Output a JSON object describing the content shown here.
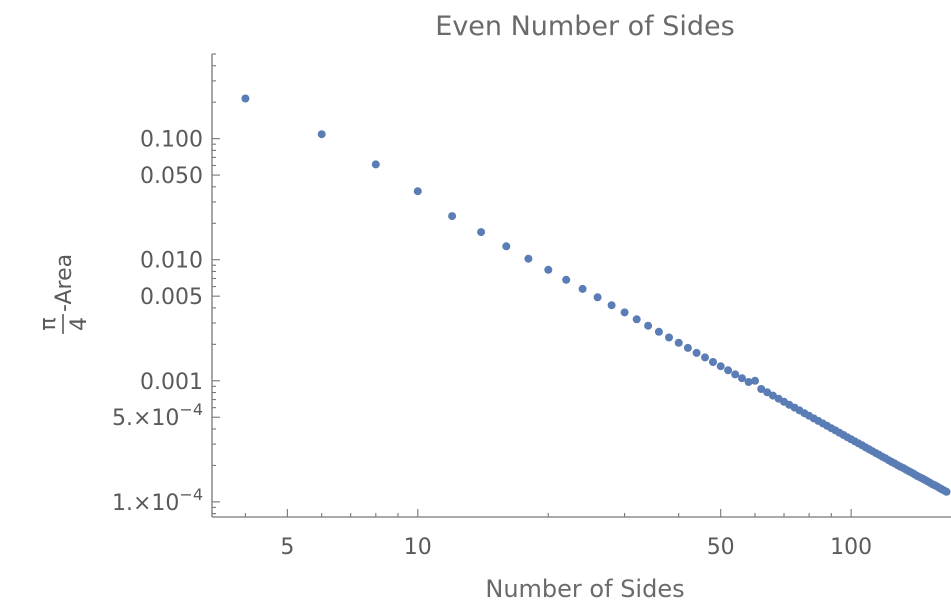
{
  "chart_data": {
    "type": "scatter",
    "title": "Even Number of Sides",
    "xlabel": "Number of Sides",
    "ylabel": {
      "numerator": "π",
      "denominator": "4",
      "suffix": "-Area"
    },
    "x_scale": "log",
    "y_scale": "log",
    "xlim": [
      3.35,
      170
    ],
    "ylim": [
      7.5e-05,
      0.5
    ],
    "grid": false,
    "legend": "none",
    "marker_color": "#5a7db5",
    "x_ticks": [
      {
        "value": 5,
        "label": "5"
      },
      {
        "value": 10,
        "label": "10"
      },
      {
        "value": 50,
        "label": "50"
      },
      {
        "value": 100,
        "label": "100"
      }
    ],
    "y_ticks": [
      {
        "value": 0.1,
        "label": "0.100"
      },
      {
        "value": 0.05,
        "label": "0.050"
      },
      {
        "value": 0.01,
        "label": "0.010"
      },
      {
        "value": 0.005,
        "label": "0.005"
      },
      {
        "value": 0.001,
        "label": "0.001"
      },
      {
        "value": 0.0005,
        "mantissa": "5.×10",
        "exp": "−4"
      },
      {
        "value": 0.0001,
        "mantissa": "1.×10",
        "exp": "−4"
      }
    ],
    "series": [
      {
        "x": [
          4,
          6,
          8,
          10,
          12,
          14,
          16,
          18,
          20,
          22,
          24,
          26,
          28,
          30,
          32,
          34,
          36,
          38,
          40,
          42,
          44,
          46,
          48,
          50,
          52,
          54,
          56,
          58,
          60,
          62,
          64,
          66,
          68,
          70,
          72,
          74,
          76,
          78,
          80,
          82,
          84,
          86,
          88,
          90,
          92,
          94,
          96,
          98,
          100,
          102,
          104,
          106,
          108,
          110,
          112,
          114,
          116,
          118,
          120,
          122,
          124,
          126,
          128,
          130,
          132,
          134,
          136,
          138,
          140,
          142,
          144,
          146,
          148,
          150,
          152,
          154,
          156,
          158,
          160,
          162,
          164,
          166
        ],
        "y": [
          0.2146,
          0.1087,
          0.0613,
          0.0368,
          0.0229,
          0.0169,
          0.0129,
          0.0102,
          0.00826,
          0.00682,
          0.00574,
          0.00489,
          0.00421,
          0.00367,
          0.00322,
          0.00285,
          0.00254,
          0.00228,
          0.00206,
          0.00187,
          0.0017,
          0.00156,
          0.00143,
          0.00132,
          0.00122,
          0.00113,
          0.00105,
          0.000977,
          0.000999,
          0.000855,
          0.000803,
          0.000755,
          0.000711,
          0.000671,
          0.000634,
          0.000601,
          0.000569,
          0.00054,
          0.000514,
          0.000489,
          0.000466,
          0.000445,
          0.000425,
          0.000406,
          0.000389,
          0.000372,
          0.000357,
          0.000342,
          0.000329,
          0.000316,
          0.000304,
          0.000293,
          0.000282,
          0.000272,
          0.000262,
          0.000253,
          0.000245,
          0.000236,
          0.000229,
          0.000221,
          0.000214,
          0.000208,
          0.000201,
          0.000195,
          0.00019,
          0.000184,
          0.000179,
          0.000174,
          0.000169,
          0.000164,
          0.00016,
          0.000156,
          0.000152,
          0.000148,
          0.000144,
          0.00014,
          0.000137,
          0.000134,
          0.00013,
          0.000127,
          0.000124,
          0.000121
        ]
      }
    ]
  }
}
